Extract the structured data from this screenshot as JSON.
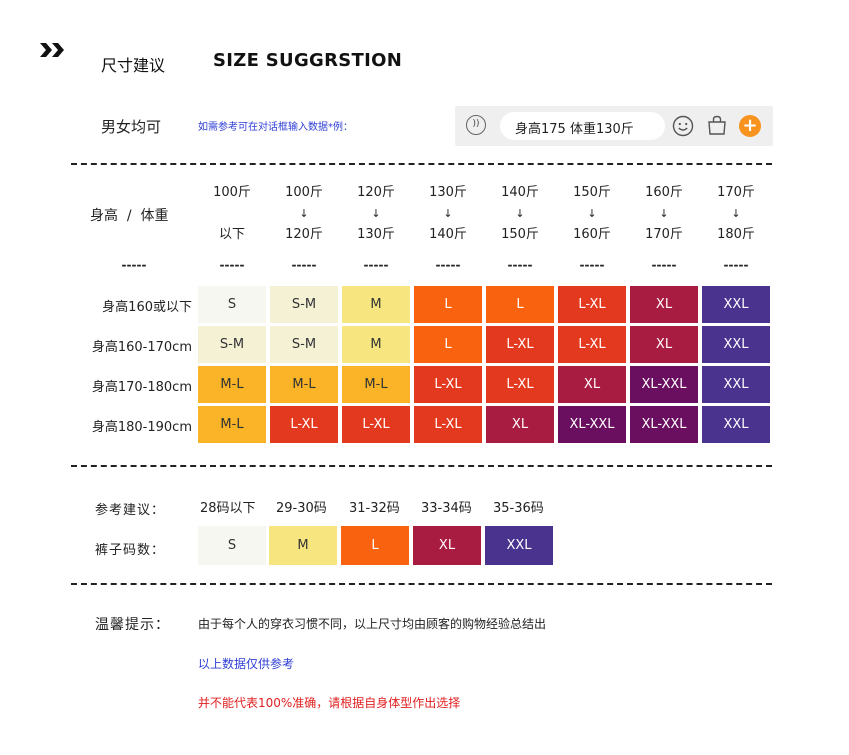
{
  "header": {
    "title_cn": "尺寸建议",
    "title_en": "SIZE SUGGRSTION"
  },
  "gender_label": "男女均可",
  "input_hint": "如需参考可在对话框输入数据*例：",
  "input_bar": {
    "text": "身高175 体重130斤",
    "voice_glyph": "))",
    "plus_glyph": "+"
  },
  "table": {
    "corner_label": "身高  /  体重",
    "corner_dash": "-----",
    "columns": [
      {
        "top": "100斤",
        "mid": "",
        "bottom": "以下",
        "dash": "-----"
      },
      {
        "top": "100斤",
        "mid": "↓",
        "bottom": "120斤",
        "dash": "-----"
      },
      {
        "top": "120斤",
        "mid": "↓",
        "bottom": "130斤",
        "dash": "-----"
      },
      {
        "top": "130斤",
        "mid": "↓",
        "bottom": "140斤",
        "dash": "-----"
      },
      {
        "top": "140斤",
        "mid": "↓",
        "bottom": "150斤",
        "dash": "-----"
      },
      {
        "top": "150斤",
        "mid": "↓",
        "bottom": "160斤",
        "dash": "-----"
      },
      {
        "top": "160斤",
        "mid": "↓",
        "bottom": "170斤",
        "dash": "-----"
      },
      {
        "top": "170斤",
        "mid": "↓",
        "bottom": "180斤",
        "dash": "-----"
      }
    ],
    "rows": [
      {
        "label": "身高160或以下",
        "cells": [
          "S",
          "S-M",
          "M",
          "L",
          "L",
          "L-XL",
          "XL",
          "XXL"
        ]
      },
      {
        "label": "身高160-170cm",
        "cells": [
          "S-M",
          "S-M",
          "M",
          "L",
          "L-XL",
          "L-XL",
          "XL",
          "XXL"
        ]
      },
      {
        "label": "身高170-180cm",
        "cells": [
          "M-L",
          "M-L",
          "M-L",
          "L-XL",
          "L-XL",
          "XL",
          "XL-XXL",
          "XXL"
        ]
      },
      {
        "label": "身高180-190cm",
        "cells": [
          "M-L",
          "L-XL",
          "L-XL",
          "L-XL",
          "XL",
          "XL-XXL",
          "XL-XXL",
          "XXL"
        ]
      }
    ]
  },
  "size_colors": {
    "S": "#f7f7f2",
    "S-M": "#f5f1d5",
    "M": "#f7e67f",
    "M-L": "#fbb427",
    "L": "#f9630f",
    "L-XL": "#e33a1f",
    "XL": "#a91c42",
    "XL-XXL": "#6a0f5f",
    "XXL": "#4a338f"
  },
  "pants": {
    "ref_label": "参考建议：",
    "size_label": "裤子码数：",
    "headers": [
      "28码以下",
      "29-30码",
      "31-32码",
      "33-34码",
      "35-36码"
    ],
    "sizes": [
      "S",
      "M",
      "L",
      "XL",
      "XXL"
    ]
  },
  "tips": {
    "label": "温馨提示：",
    "line1": "由于每个人的穿衣习惯不同，以上尺寸均由顾客的购物经验总结出",
    "line2": "以上数据仅供参考",
    "line3": "并不能代表100%准确，请根据自身体型作出选择"
  }
}
